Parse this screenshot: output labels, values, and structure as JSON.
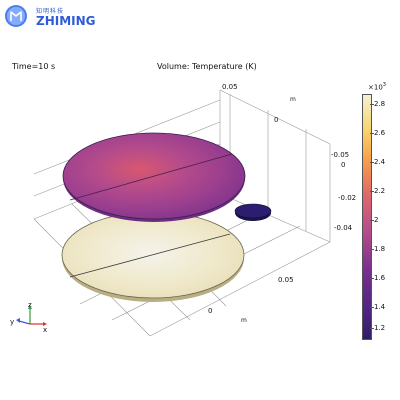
{
  "brand": {
    "logo_icon": "zhiming-logo-icon",
    "name_cn": "知明科技",
    "name_en": "ZHIMING",
    "color": "#2f5bd6"
  },
  "header": {
    "time": "Time=10 s",
    "plot_title": "Volume: Temperature (K)"
  },
  "axes": {
    "z_top": "0.05",
    "m_label": "m",
    "x_zero": "0",
    "y_values": [
      "-0.05",
      "0",
      "-0.02",
      "-0.04"
    ],
    "x_axis_value": "0.05",
    "x_axis_zero": "0",
    "x_axis_unit": "m"
  },
  "triad": {
    "x": "x",
    "y": "y",
    "z": "z"
  },
  "colorbar": {
    "multiplier_base": "×10",
    "multiplier_exp": "3",
    "ticks": [
      "2.8",
      "2.6",
      "2.4",
      "2.2",
      "2",
      "1.8",
      "1.6",
      "1.4",
      "1.2"
    ]
  },
  "colors": {
    "upper_disk": "#b54d8b",
    "lower_disk": "#efe8c9",
    "small_disk": "#2c1d70"
  }
}
